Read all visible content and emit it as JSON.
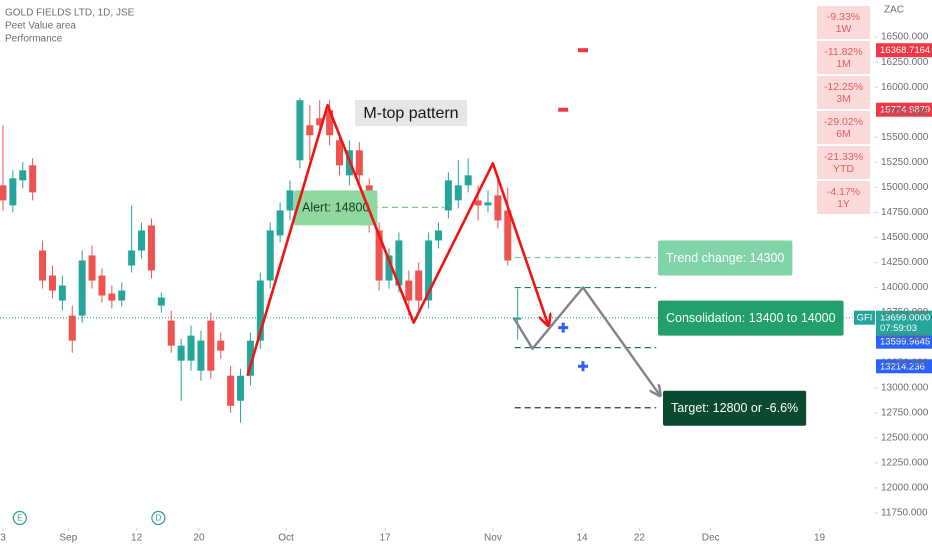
{
  "chart_data": {
    "type": "candlestick",
    "title": "GOLD FIELDS LTD, 1D, JSE",
    "indicators": [
      "Peet Value area",
      "Performance"
    ],
    "currency": "ZAC",
    "symbol": "GFI",
    "countdown": "07:59:03",
    "pattern_label": "M-top pattern",
    "up_color": "#26a69a",
    "down_color": "#ef5350",
    "xlim": [
      -0.3,
      88.1
    ],
    "ylim": [
      11600,
      16870
    ],
    "xticks": [
      {
        "value": 0,
        "label": "3"
      },
      {
        "value": 6.6,
        "label": "Sep"
      },
      {
        "value": 13.5,
        "label": "12"
      },
      {
        "value": 19.8,
        "label": "20"
      },
      {
        "value": 28.6,
        "label": "Oct"
      },
      {
        "value": 38.6,
        "label": "17"
      },
      {
        "value": 49.5,
        "label": "Nov"
      },
      {
        "value": 58.5,
        "label": "14"
      },
      {
        "value": 64.3,
        "label": "22"
      },
      {
        "value": 71.5,
        "label": "Dec"
      },
      {
        "value": 82.5,
        "label": "19"
      }
    ],
    "yticks": [
      {
        "value": 16500,
        "label": "16500.000"
      },
      {
        "value": 16250,
        "label": "16250.000"
      },
      {
        "value": 16000,
        "label": "16000.000"
      },
      {
        "value": 15750,
        "label": "15750.000"
      },
      {
        "value": 15500,
        "label": "15500.000"
      },
      {
        "value": 15250,
        "label": "15250.000"
      },
      {
        "value": 15000,
        "label": "15000.000"
      },
      {
        "value": 14750,
        "label": "14750.000"
      },
      {
        "value": 14500,
        "label": "14500.000"
      },
      {
        "value": 14250,
        "label": "14250.000"
      },
      {
        "value": 14000,
        "label": "14000.000"
      },
      {
        "value": 13750,
        "label": "13750.000"
      },
      {
        "value": 13500,
        "label": "13500.000"
      },
      {
        "value": 13250,
        "label": "13250.000"
      },
      {
        "value": 13000,
        "label": "13000.000"
      },
      {
        "value": 12750,
        "label": "12750.000"
      },
      {
        "value": 12500,
        "label": "12500.000"
      },
      {
        "value": 12250,
        "label": "12250.000"
      },
      {
        "value": 12000,
        "label": "12000.000"
      },
      {
        "value": 11750,
        "label": "11750.000"
      }
    ],
    "ohlc": [
      {
        "open": 15020,
        "high": 15620,
        "low": 14770,
        "close": 14870
      },
      {
        "open": 14820,
        "high": 15170,
        "low": 14750,
        "close": 15090
      },
      {
        "open": 15070,
        "high": 15250,
        "low": 14990,
        "close": 15170
      },
      {
        "open": 15220,
        "high": 15290,
        "low": 14870,
        "close": 14950
      },
      {
        "open": 14370,
        "high": 14470,
        "low": 13990,
        "close": 14070
      },
      {
        "open": 14120,
        "high": 14220,
        "low": 13890,
        "close": 13970
      },
      {
        "open": 13870,
        "high": 14120,
        "low": 13770,
        "close": 14020
      },
      {
        "open": 13720,
        "high": 13820,
        "low": 13350,
        "close": 13470
      },
      {
        "open": 13720,
        "high": 14370,
        "low": 13650,
        "close": 14270
      },
      {
        "open": 14320,
        "high": 14420,
        "low": 13990,
        "close": 14070
      },
      {
        "open": 14120,
        "high": 14190,
        "low": 13850,
        "close": 13920
      },
      {
        "open": 13940,
        "high": 14020,
        "low": 13790,
        "close": 13870
      },
      {
        "open": 13870,
        "high": 14050,
        "low": 13810,
        "close": 13970
      },
      {
        "open": 14220,
        "high": 14820,
        "low": 14150,
        "close": 14370
      },
      {
        "open": 14370,
        "high": 14650,
        "low": 14290,
        "close": 14570
      },
      {
        "open": 14620,
        "high": 14690,
        "low": 14090,
        "close": 14170
      },
      {
        "open": 13820,
        "high": 13950,
        "low": 13750,
        "close": 13900
      },
      {
        "open": 13670,
        "high": 13770,
        "low": 13350,
        "close": 13420
      },
      {
        "open": 13270,
        "high": 13490,
        "low": 12870,
        "close": 13420
      },
      {
        "open": 13270,
        "high": 13620,
        "low": 13170,
        "close": 13520
      },
      {
        "open": 13170,
        "high": 13570,
        "low": 13070,
        "close": 13470
      },
      {
        "open": 13670,
        "high": 13750,
        "low": 13090,
        "close": 13170
      },
      {
        "open": 13470,
        "high": 13550,
        "low": 13290,
        "close": 13370
      },
      {
        "open": 13120,
        "high": 13220,
        "low": 12750,
        "close": 12820
      },
      {
        "open": 12870,
        "high": 13190,
        "low": 12650,
        "close": 13120
      },
      {
        "open": 13120,
        "high": 13550,
        "low": 13020,
        "close": 13470
      },
      {
        "open": 13470,
        "high": 14150,
        "low": 13390,
        "close": 14070
      },
      {
        "open": 14070,
        "high": 14650,
        "low": 13990,
        "close": 14570
      },
      {
        "open": 14520,
        "high": 14850,
        "low": 14450,
        "close": 14770
      },
      {
        "open": 14770,
        "high": 15070,
        "low": 14670,
        "close": 14970
      },
      {
        "open": 15270,
        "high": 15890,
        "low": 15190,
        "close": 15870
      },
      {
        "open": 15620,
        "high": 15820,
        "low": 15270,
        "close": 15520
      },
      {
        "open": 15690,
        "high": 15870,
        "low": 15550,
        "close": 15620
      },
      {
        "open": 15770,
        "high": 15870,
        "low": 15420,
        "close": 15520
      },
      {
        "open": 15470,
        "high": 15550,
        "low": 15120,
        "close": 15220
      },
      {
        "open": 15120,
        "high": 15470,
        "low": 15020,
        "close": 15370
      },
      {
        "open": 15370,
        "high": 15450,
        "low": 15020,
        "close": 15120
      },
      {
        "open": 15020,
        "high": 15090,
        "low": 14550,
        "close": 14620
      },
      {
        "open": 14570,
        "high": 14650,
        "low": 13970,
        "close": 14070
      },
      {
        "open": 14070,
        "high": 14390,
        "low": 13990,
        "close": 14320
      },
      {
        "open": 14020,
        "high": 14550,
        "low": 13950,
        "close": 14470
      },
      {
        "open": 14070,
        "high": 14170,
        "low": 13720,
        "close": 13870
      },
      {
        "open": 14170,
        "high": 14250,
        "low": 13770,
        "close": 13870
      },
      {
        "open": 13870,
        "high": 14550,
        "low": 13790,
        "close": 14470
      },
      {
        "open": 14470,
        "high": 14650,
        "low": 14390,
        "close": 14570
      },
      {
        "open": 14770,
        "high": 15150,
        "low": 14690,
        "close": 15070
      },
      {
        "open": 14870,
        "high": 15270,
        "low": 14790,
        "close": 15020
      },
      {
        "open": 15020,
        "high": 15290,
        "low": 14950,
        "close": 15120
      },
      {
        "open": 14870,
        "high": 15020,
        "low": 14670,
        "close": 14820
      },
      {
        "open": 14820,
        "high": 14970,
        "low": 14750,
        "close": 14850
      },
      {
        "open": 14920,
        "high": 15070,
        "low": 14590,
        "close": 14670
      },
      {
        "open": 14770,
        "high": 15000,
        "low": 14220,
        "close": 14270
      },
      {
        "open": 13680,
        "high": 13990,
        "low": 13480,
        "close": 13699
      }
    ],
    "last_price": {
      "value": 13699,
      "label": "13699.0000"
    },
    "drawings": [
      {
        "color": "#f01414",
        "points": [
          [
            24.7,
            13120
          ],
          [
            32.8,
            15820
          ],
          [
            41.5,
            13650
          ],
          [
            49.5,
            15240
          ],
          [
            55.1,
            13620
          ]
        ]
      },
      {
        "color": "#80838c",
        "points": [
          [
            51.6,
            13699
          ],
          [
            53.5,
            13390
          ],
          [
            58.6,
            14000
          ],
          [
            66.4,
            12920
          ]
        ]
      }
    ],
    "levels": [
      {
        "label": "Alert: 14800",
        "prices": [
          14800
        ],
        "from": 29.2,
        "to": 44.6,
        "color": "#81c784",
        "box": "#8fd9a0",
        "text_color": "#1b3a24"
      },
      {
        "label": "Trend change: 14300",
        "prices": [
          14300
        ],
        "from": 51.7,
        "to": 66,
        "color": "#81c9a8",
        "box": "#80d4a8",
        "text_color": "#ffffff"
      },
      {
        "label": "Consolidation: 13400 to 14000",
        "prices": [
          14000,
          13400
        ],
        "from": 51.7,
        "to": 66,
        "color": "#14805e",
        "box": "#22a06b",
        "text_color": "#ffffff"
      },
      {
        "label": "Target: 12800 or -6.6%",
        "prices": [
          12800
        ],
        "from": 51.7,
        "to": 66,
        "color": "#333333",
        "box": "#0a4a2e",
        "text_color": "#ffffff"
      }
    ],
    "price_tags": [
      {
        "value": 16368.7164,
        "color": "#f23645",
        "marker": "dash",
        "marker_x": 58.6
      },
      {
        "value": 15774.9879,
        "color": "#f23645",
        "marker": "dash",
        "marker_x": 56.6
      },
      {
        "value": 13599.9645,
        "color": "#2962ff",
        "marker": "plus",
        "marker_x": 56.6
      },
      {
        "value": 13214.236,
        "color": "#2962ff",
        "marker": "plus",
        "marker_x": 58.6
      }
    ],
    "performance": [
      {
        "value": "-9.33%",
        "period": "1W"
      },
      {
        "value": "-11.82%",
        "period": "1M"
      },
      {
        "value": "-12.25%",
        "period": "3M"
      },
      {
        "value": "-29.02%",
        "period": "6M"
      },
      {
        "value": "-21.33%",
        "period": "YTD"
      },
      {
        "value": "-4.17%",
        "period": "1Y"
      }
    ],
    "events": [
      {
        "label": "E",
        "x": 1.7
      },
      {
        "label": "D",
        "x": 15.7
      }
    ]
  }
}
